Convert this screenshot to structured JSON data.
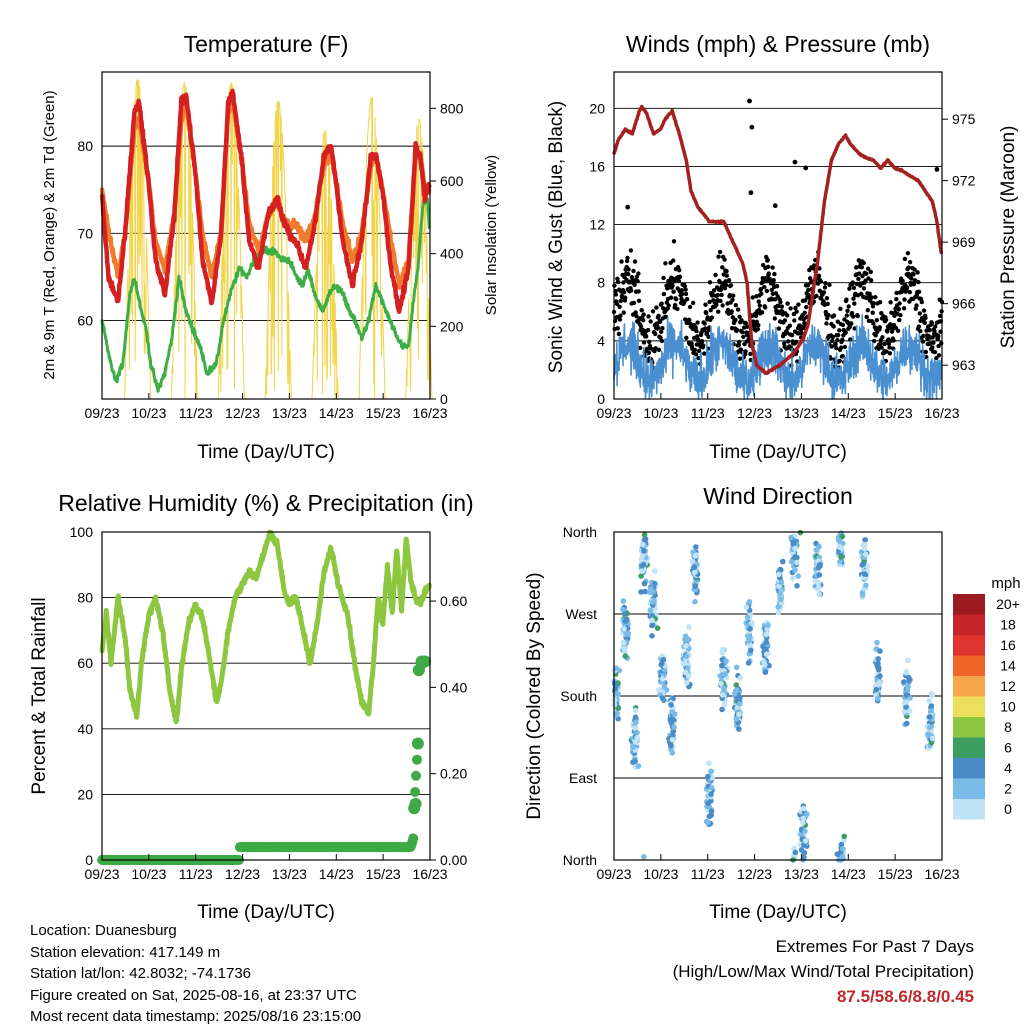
{
  "charts": {
    "temperature": {
      "title": "Temperature (F)",
      "ylabel_left": "2m & 9m T (Red, Orange) & 2m Td (Green)",
      "ylabel_right": "Solar Insolation (Yellow)",
      "xlabel": "Time (Day/UTC)"
    },
    "winds": {
      "title": "Winds (mph) & Pressure (mb)",
      "ylabel_left": "Sonic Wind & Gust (Blue, Black)",
      "ylabel_right": "Station Pressure (Maroon)",
      "xlabel": "Time (Day/UTC)"
    },
    "humidity": {
      "title": "Relative Humidity (%) & Precipitation (in)",
      "ylabel_left": "Percent & Total Rainfall",
      "xlabel": "Time (Day/UTC)"
    },
    "direction": {
      "title": "Wind Direction",
      "ylabel_left": "Direction (Colored By Speed)",
      "xlabel": "Time (Day/UTC)",
      "legend_title": "mph"
    }
  },
  "chart_data": [
    {
      "id": "temperature",
      "type": "line",
      "title": "Temperature (F)",
      "xlabel": "Time (Day/UTC)",
      "ylabel": "2m & 9m T (Red, Orange) & 2m Td (Green)",
      "y2label": "Solar Insolation (Yellow)",
      "x_ticks": [
        "09/23",
        "10/23",
        "11/23",
        "12/23",
        "13/23",
        "14/23",
        "15/23",
        "16/23"
      ],
      "xlim_days": [
        9.958,
        16.958
      ],
      "ylim": [
        51,
        88.5
      ],
      "y_ticks": [
        60,
        70,
        80
      ],
      "y2lim": [
        0,
        900
      ],
      "y2_ticks": [
        0,
        200,
        400,
        600,
        800
      ],
      "grid": "horizontal",
      "series": [
        {
          "name": "2m T",
          "color": "#d42020",
          "t": [
            9.96,
            10.1,
            10.3,
            10.45,
            10.65,
            10.75,
            10.95,
            11.1,
            11.3,
            11.5,
            11.65,
            11.75,
            11.95,
            12.1,
            12.3,
            12.5,
            12.65,
            12.75,
            12.95,
            13.1,
            13.3,
            13.5,
            13.7,
            13.8,
            13.95,
            14.1,
            14.3,
            14.5,
            14.7,
            14.85,
            14.95,
            15.1,
            15.3,
            15.5,
            15.7,
            15.8,
            15.95,
            16.1,
            16.3,
            16.5,
            16.65,
            16.75,
            16.85,
            16.95
          ],
          "v": [
            74,
            65,
            62,
            70,
            84,
            85,
            76,
            67,
            63,
            72,
            85,
            86,
            77,
            67,
            62,
            70,
            85,
            86,
            78,
            69,
            66,
            72,
            74,
            72,
            70,
            69,
            66,
            71,
            79,
            80,
            76,
            69,
            64,
            69,
            79,
            79,
            75,
            67,
            61,
            66,
            80,
            79,
            74,
            76
          ]
        },
        {
          "name": "9m T",
          "color": "#f07b2c",
          "t": [
            9.96,
            10.1,
            10.3,
            10.45,
            10.65,
            10.75,
            10.95,
            11.1,
            11.3,
            11.5,
            11.65,
            11.75,
            11.95,
            12.1,
            12.3,
            12.5,
            12.65,
            12.75,
            12.95,
            13.1,
            13.3,
            13.5,
            13.7,
            13.8,
            13.95,
            14.1,
            14.3,
            14.5,
            14.7,
            14.85,
            14.95,
            15.1,
            15.3,
            15.5,
            15.7,
            15.8,
            15.95,
            16.1,
            16.3,
            16.5,
            16.65,
            16.75,
            16.85,
            16.95
          ],
          "v": [
            75,
            70,
            65,
            70,
            82,
            83,
            76,
            69,
            66,
            72,
            83,
            85,
            77,
            70,
            65,
            70,
            84,
            85,
            78,
            71,
            68,
            72,
            74,
            72,
            71,
            71,
            69,
            72,
            78,
            79,
            76,
            71,
            67,
            70,
            78,
            79,
            75,
            70,
            64,
            67,
            79,
            79,
            75,
            75
          ]
        },
        {
          "name": "2m Td",
          "color": "#3dae45",
          "t": [
            9.96,
            10.1,
            10.25,
            10.4,
            10.55,
            10.65,
            10.8,
            10.9,
            11.0,
            11.15,
            11.3,
            11.45,
            11.6,
            11.75,
            11.9,
            12.05,
            12.2,
            12.4,
            12.55,
            12.75,
            12.9,
            13.05,
            13.2,
            13.4,
            13.6,
            13.8,
            13.95,
            14.1,
            14.25,
            14.35,
            14.5,
            14.65,
            14.8,
            14.95,
            15.1,
            15.25,
            15.35,
            15.5,
            15.65,
            15.8,
            15.95,
            16.1,
            16.25,
            16.4,
            16.5,
            16.6,
            16.7,
            16.8,
            16.9,
            16.95
          ],
          "v": [
            60,
            56,
            53,
            55,
            63,
            65,
            61,
            59,
            55,
            52,
            54,
            58,
            65,
            61,
            59,
            57,
            54,
            55,
            60,
            64,
            66,
            65,
            67,
            68,
            68,
            67,
            67,
            65,
            64,
            66,
            63,
            61,
            63,
            64,
            63,
            61,
            60,
            58,
            60,
            64,
            62,
            60,
            58,
            57,
            57,
            62,
            66,
            73,
            74,
            70
          ]
        },
        {
          "name": "Solar Insolation",
          "color": "#f2d44a",
          "axis": "right",
          "peaks": [
            {
              "t": 10.72,
              "v": 880
            },
            {
              "t": 11.72,
              "v": 870
            },
            {
              "t": 12.72,
              "v": 870
            },
            {
              "t": 13.72,
              "v": 820
            },
            {
              "t": 14.72,
              "v": 740
            },
            {
              "t": 15.72,
              "v": 830
            },
            {
              "t": 16.72,
              "v": 770
            }
          ]
        }
      ]
    },
    {
      "id": "winds",
      "type": "scatter",
      "title": "Winds (mph) & Pressure (mb)",
      "xlabel": "Time (Day/UTC)",
      "ylabel": "Sonic Wind & Gust (Blue, Black)",
      "y2label": "Station Pressure (Maroon)",
      "x_ticks": [
        "09/23",
        "10/23",
        "11/23",
        "12/23",
        "13/23",
        "14/23",
        "15/23",
        "16/23"
      ],
      "xlim_days": [
        9.958,
        16.958
      ],
      "ylim": [
        0,
        22.5
      ],
      "y_ticks": [
        0,
        4,
        8,
        12,
        16,
        20
      ],
      "y2lim": [
        961.35,
        977.3
      ],
      "y2_ticks": [
        963,
        966,
        969,
        972,
        975
      ],
      "grid": "horizontal",
      "series": [
        {
          "name": "Sonic Wind",
          "color": "#4a90d0",
          "mean_level": 2.5,
          "spread": 2.5
        },
        {
          "name": "Gust",
          "color": "#000000",
          "mean_level": 6,
          "spread": 3,
          "outliers": [
            {
              "t": 12.85,
              "v": 20.5
            },
            {
              "t": 12.9,
              "v": 18.7
            },
            {
              "t": 13.82,
              "v": 16.3
            },
            {
              "t": 14.05,
              "v": 15.9
            },
            {
              "t": 16.85,
              "v": 15.8
            },
            {
              "t": 12.88,
              "v": 14.2
            },
            {
              "t": 13.4,
              "v": 13.3
            },
            {
              "t": 10.25,
              "v": 13.2
            }
          ]
        },
        {
          "name": "Station Pressure",
          "color": "#a52020",
          "axis": "right",
          "t": [
            9.96,
            10.05,
            10.2,
            10.35,
            10.5,
            10.55,
            10.65,
            10.8,
            10.95,
            11.05,
            11.2,
            11.35,
            11.5,
            11.6,
            11.75,
            12.0,
            12.3,
            12.5,
            12.7,
            12.8,
            12.9,
            13.0,
            13.2,
            13.5,
            13.8,
            14.0,
            14.1,
            14.3,
            14.45,
            14.6,
            14.75,
            14.9,
            15.0,
            15.2,
            15.35,
            15.5,
            15.65,
            15.8,
            15.95,
            16.1,
            16.3,
            16.45,
            16.6,
            16.75,
            16.85,
            16.95
          ],
          "v": [
            973.3,
            974,
            974.5,
            974.3,
            975.4,
            975.6,
            975.3,
            974.3,
            974.5,
            975,
            975.4,
            974.3,
            973,
            971.5,
            970.7,
            970,
            970,
            969,
            968,
            967,
            964,
            963,
            962.6,
            963,
            963.6,
            964.3,
            965,
            968,
            971,
            973,
            973.8,
            974.2,
            973.8,
            973.3,
            973.1,
            973,
            972.6,
            973,
            972.6,
            972.5,
            972.2,
            972,
            971.5,
            971,
            970,
            968.3
          ]
        }
      ]
    },
    {
      "id": "humidity",
      "type": "line",
      "title": "Relative Humidity (%) & Precipitation (in)",
      "xlabel": "Time (Day/UTC)",
      "ylabel": "Percent & Total Rainfall",
      "x_ticks": [
        "09/23",
        "10/23",
        "11/23",
        "12/23",
        "13/23",
        "14/23",
        "15/23",
        "16/23"
      ],
      "xlim_days": [
        9.958,
        16.958
      ],
      "ylim": [
        0,
        100
      ],
      "y_ticks": [
        0,
        20,
        40,
        60,
        80,
        100
      ],
      "y2lim": [
        0,
        0.76
      ],
      "y2_ticks": [
        "0.00",
        "0.20",
        "0.40",
        "0.60"
      ],
      "grid": "horizontal",
      "series": [
        {
          "name": "Relative Humidity",
          "color": "#8dc63f",
          "t": [
            9.96,
            10.05,
            10.15,
            10.3,
            10.45,
            10.55,
            10.7,
            10.8,
            10.95,
            11.1,
            11.25,
            11.4,
            11.55,
            11.65,
            11.8,
            11.95,
            12.1,
            12.25,
            12.4,
            12.5,
            12.65,
            12.8,
            12.95,
            13.1,
            13.25,
            13.4,
            13.55,
            13.7,
            13.85,
            13.95,
            14.1,
            14.25,
            14.4,
            14.55,
            14.7,
            14.85,
            15.0,
            15.2,
            15.35,
            15.5,
            15.65,
            15.75,
            15.85,
            15.95,
            16.05,
            16.15,
            16.25,
            16.35,
            16.45,
            16.55,
            16.65,
            16.75,
            16.85,
            16.95
          ],
          "v": [
            64,
            76,
            60,
            80,
            68,
            52,
            44,
            60,
            74,
            80,
            70,
            52,
            42,
            58,
            72,
            78,
            74,
            62,
            48,
            54,
            70,
            80,
            84,
            88,
            86,
            93,
            100,
            96,
            82,
            78,
            80,
            70,
            60,
            72,
            88,
            95,
            84,
            75,
            60,
            48,
            45,
            60,
            80,
            72,
            90,
            75,
            95,
            76,
            98,
            85,
            80,
            78,
            82,
            84
          ]
        },
        {
          "name": "Total Rainfall",
          "color": "#3daa45",
          "axis": "right",
          "t": [
            9.96,
            12.88,
            12.9,
            16.55,
            16.6,
            16.62,
            16.7,
            16.72,
            16.8,
            16.85
          ],
          "v": [
            0.0,
            0.0,
            0.03,
            0.03,
            0.05,
            0.12,
            0.27,
            0.44,
            0.46,
            0.46
          ]
        }
      ]
    },
    {
      "id": "direction",
      "type": "scatter",
      "title": "Wind Direction",
      "xlabel": "Time (Day/UTC)",
      "ylabel": "Direction (Colored By Speed)",
      "x_ticks": [
        "09/23",
        "10/23",
        "11/23",
        "12/23",
        "13/23",
        "14/23",
        "15/23",
        "16/23"
      ],
      "xlim_days": [
        9.958,
        16.958
      ],
      "y_ticks": [
        "North",
        "East",
        "South",
        "West",
        "North"
      ],
      "ylim_deg": [
        0,
        360
      ],
      "grid": "horizontal",
      "clusters": [
        {
          "t": 10.0,
          "deg": 180
        },
        {
          "t": 10.2,
          "deg": 250
        },
        {
          "t": 10.4,
          "deg": 130
        },
        {
          "t": 10.6,
          "deg": 330
        },
        {
          "t": 10.8,
          "deg": 280
        },
        {
          "t": 11.0,
          "deg": 200
        },
        {
          "t": 11.2,
          "deg": 150
        },
        {
          "t": 11.5,
          "deg": 220
        },
        {
          "t": 11.7,
          "deg": 320
        },
        {
          "t": 12.0,
          "deg": 70
        },
        {
          "t": 12.3,
          "deg": 200
        },
        {
          "t": 12.6,
          "deg": 170
        },
        {
          "t": 12.85,
          "deg": 250
        },
        {
          "t": 13.2,
          "deg": 230
        },
        {
          "t": 13.5,
          "deg": 300
        },
        {
          "t": 13.8,
          "deg": 340
        },
        {
          "t": 14.0,
          "deg": 30
        },
        {
          "t": 14.3,
          "deg": 320
        },
        {
          "t": 14.8,
          "deg": 350
        },
        {
          "t": 15.3,
          "deg": 320
        },
        {
          "t": 15.6,
          "deg": 200
        },
        {
          "t": 16.2,
          "deg": 180
        },
        {
          "t": 16.7,
          "deg": 150
        }
      ],
      "legend": {
        "title": "mph",
        "labels": [
          "20+",
          "18",
          "16",
          "14",
          "12",
          "10",
          "8",
          "6",
          "4",
          "2",
          "0"
        ],
        "colors": [
          "#9b1b1e",
          "#c52428",
          "#e0342e",
          "#f06428",
          "#f7a64b",
          "#ece05a",
          "#8dc63f",
          "#3d9e62",
          "#4a8cc8",
          "#7bbbe8",
          "#bfe3f7"
        ]
      }
    }
  ],
  "footer": {
    "location": "Location: Duanesburg",
    "elevation": "Station elevation: 417.149 m",
    "latlon": "Station lat/lon: 42.8032; -74.1736",
    "created": "Figure created on Sat, 2025-08-16, at 23:37 UTC",
    "recent": "Most recent data timestamp: 2025/08/16 23:15:00",
    "extremes_title": "Extremes For Past 7 Days",
    "extremes_subtitle": "(High/Low/Max Wind/Total Precipitation)",
    "extremes_values": "87.5/58.6/8.8/0.45"
  }
}
